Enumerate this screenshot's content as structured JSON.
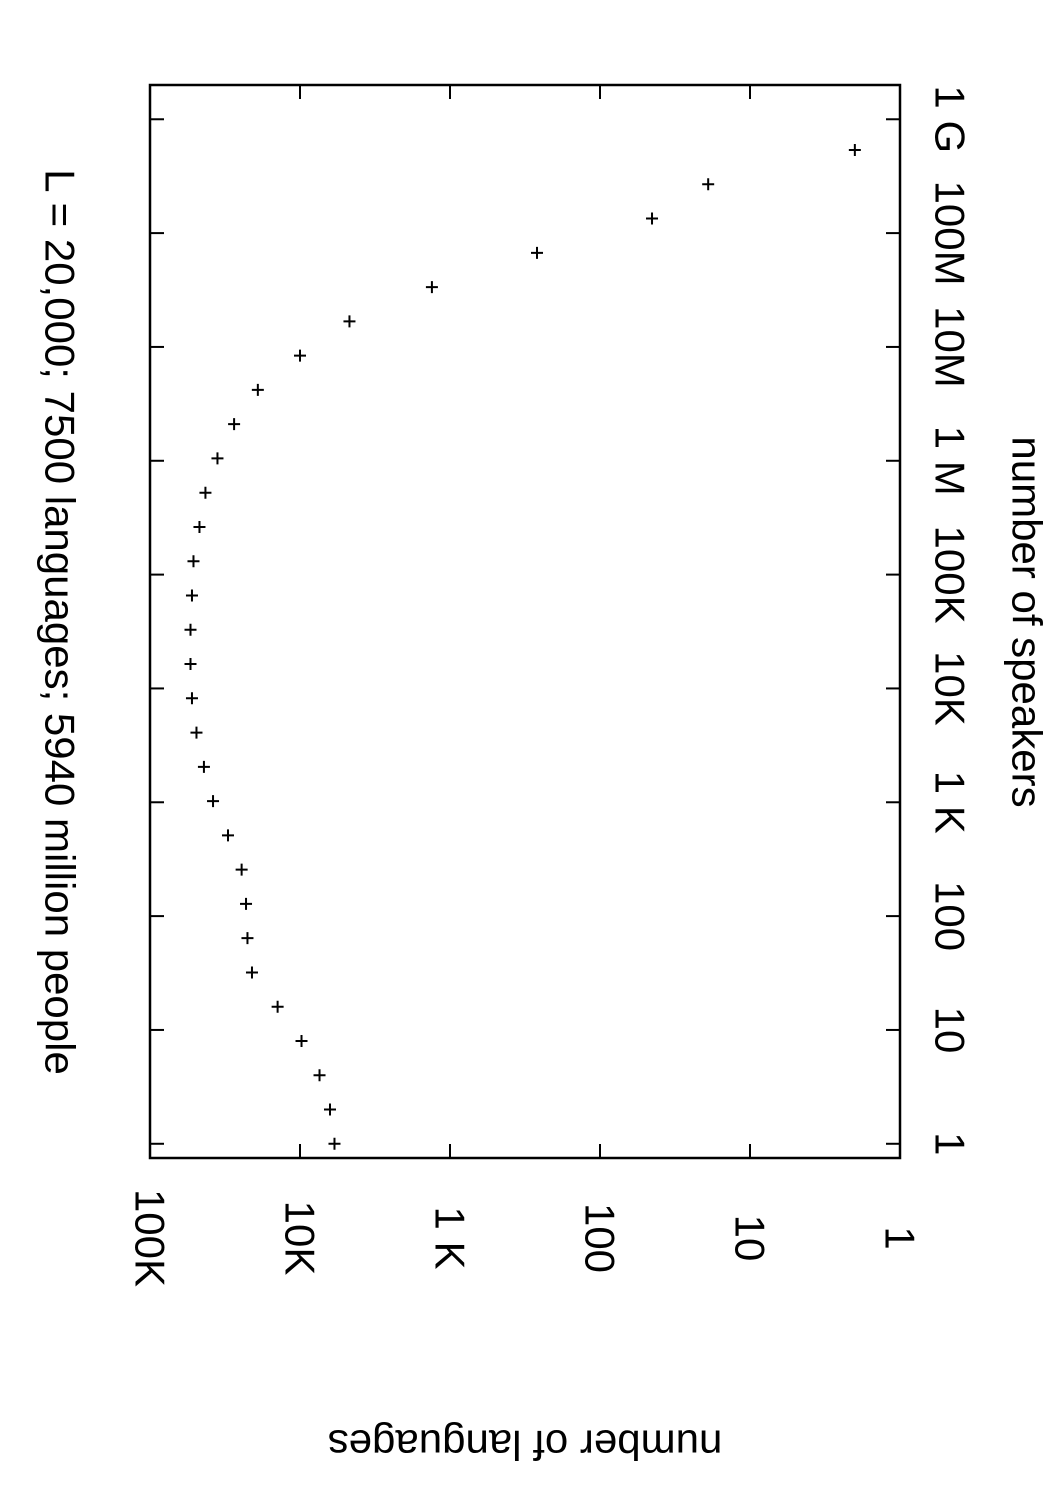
{
  "chart_data": {
    "type": "scatter",
    "title": "L = 20,000; 7500 languages; 5940 million people",
    "xlabel": "number of speakers",
    "ylabel": "number of languages",
    "x_scale": "log",
    "y_scale": "log",
    "x_ticks": [
      {
        "value": 1,
        "label": "1"
      },
      {
        "value": 10,
        "label": "10"
      },
      {
        "value": 100,
        "label": "100"
      },
      {
        "value": 1000,
        "label": "1 K"
      },
      {
        "value": 10000,
        "label": "10K"
      },
      {
        "value": 100000,
        "label": "100K"
      },
      {
        "value": 1000000,
        "label": "1 M"
      },
      {
        "value": 10000000,
        "label": "10M"
      },
      {
        "value": 100000000,
        "label": "100M"
      },
      {
        "value": 1000000000,
        "label": "1 G"
      }
    ],
    "y_ticks": [
      {
        "value": 1,
        "label": "1"
      },
      {
        "value": 10,
        "label": "10"
      },
      {
        "value": 100,
        "label": "100"
      },
      {
        "value": 1000,
        "label": "1 K"
      },
      {
        "value": 10000,
        "label": "10K"
      },
      {
        "value": 100000,
        "label": "100K"
      }
    ],
    "xlim": [
      0.75,
      2000000000
    ],
    "ylim": [
      1,
      100000
    ],
    "grid": false,
    "marker": "+",
    "points": [
      {
        "x": 1,
        "y": 5890
      },
      {
        "x": 2,
        "y": 6310
      },
      {
        "x": 4,
        "y": 7410
      },
      {
        "x": 8,
        "y": 9770
      },
      {
        "x": 16,
        "y": 14100
      },
      {
        "x": 32,
        "y": 20900
      },
      {
        "x": 64,
        "y": 22400
      },
      {
        "x": 128,
        "y": 22900
      },
      {
        "x": 256,
        "y": 24500
      },
      {
        "x": 512,
        "y": 30200
      },
      {
        "x": 1024,
        "y": 38000
      },
      {
        "x": 2048,
        "y": 43700
      },
      {
        "x": 4096,
        "y": 49000
      },
      {
        "x": 8192,
        "y": 52500
      },
      {
        "x": 16384,
        "y": 53700
      },
      {
        "x": 32768,
        "y": 53700
      },
      {
        "x": 65536,
        "y": 52500
      },
      {
        "x": 131072,
        "y": 51300
      },
      {
        "x": 262144,
        "y": 46800
      },
      {
        "x": 524288,
        "y": 42700
      },
      {
        "x": 1048576,
        "y": 35500
      },
      {
        "x": 2097152,
        "y": 27500
      },
      {
        "x": 4194304,
        "y": 19100
      },
      {
        "x": 8388608,
        "y": 10000
      },
      {
        "x": 16777216,
        "y": 4680
      },
      {
        "x": 33554432,
        "y": 1320
      },
      {
        "x": 67108864,
        "y": 263
      },
      {
        "x": 134217728,
        "y": 45
      },
      {
        "x": 268435456,
        "y": 19
      },
      {
        "x": 536870912,
        "y": 2
      }
    ]
  }
}
